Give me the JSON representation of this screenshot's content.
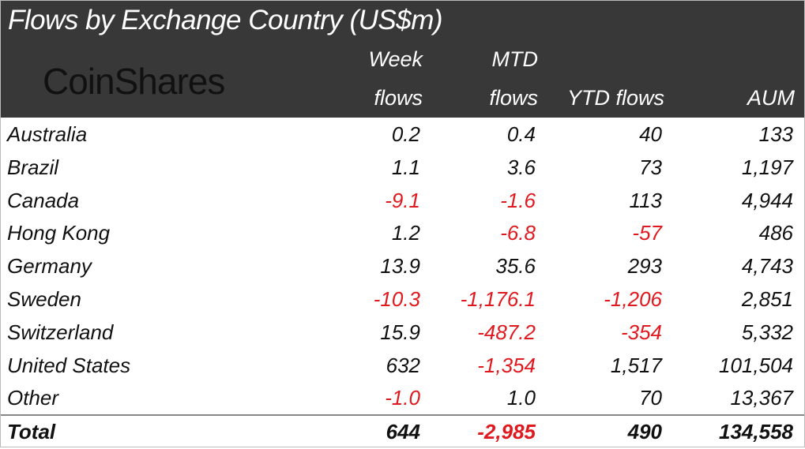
{
  "chart_data": {
    "type": "table",
    "title": "Flows by Exchange Country (US$m)",
    "logo": "CoinShares",
    "columns": [
      {
        "line1": "",
        "line2": ""
      },
      {
        "line1": "Week",
        "line2": "flows"
      },
      {
        "line1": "MTD",
        "line2": "flows"
      },
      {
        "line1": "",
        "line2": "YTD flows"
      },
      {
        "line1": "",
        "line2": "AUM"
      }
    ],
    "rows": [
      {
        "country": "Australia",
        "week": "0.2",
        "mtd": "0.4",
        "ytd": "40",
        "aum": "133"
      },
      {
        "country": "Brazil",
        "week": "1.1",
        "mtd": "3.6",
        "ytd": "73",
        "aum": "1,197"
      },
      {
        "country": "Canada",
        "week": "-9.1",
        "mtd": "-1.6",
        "ytd": "113",
        "aum": "4,944"
      },
      {
        "country": "Hong Kong",
        "week": "1.2",
        "mtd": "-6.8",
        "ytd": "-57",
        "aum": "486"
      },
      {
        "country": "Germany",
        "week": "13.9",
        "mtd": "35.6",
        "ytd": "293",
        "aum": "4,743"
      },
      {
        "country": "Sweden",
        "week": "-10.3",
        "mtd": "-1,176.1",
        "ytd": "-1,206",
        "aum": "2,851"
      },
      {
        "country": "Switzerland",
        "week": "15.9",
        "mtd": "-487.2",
        "ytd": "-354",
        "aum": "5,332"
      },
      {
        "country": "United States",
        "week": "632",
        "mtd": "-1,354",
        "ytd": "1,517",
        "aum": "101,504"
      },
      {
        "country": "Other",
        "week": "-1.0",
        "mtd": "1.0",
        "ytd": "70",
        "aum": "13,367"
      }
    ],
    "total": {
      "country": "Total",
      "week": "644",
      "mtd": "-2,985",
      "ytd": "490",
      "aum": "134,558"
    },
    "colors": {
      "header_bg": "#383838",
      "negative": "#e0191f",
      "positive": "#111111"
    }
  }
}
